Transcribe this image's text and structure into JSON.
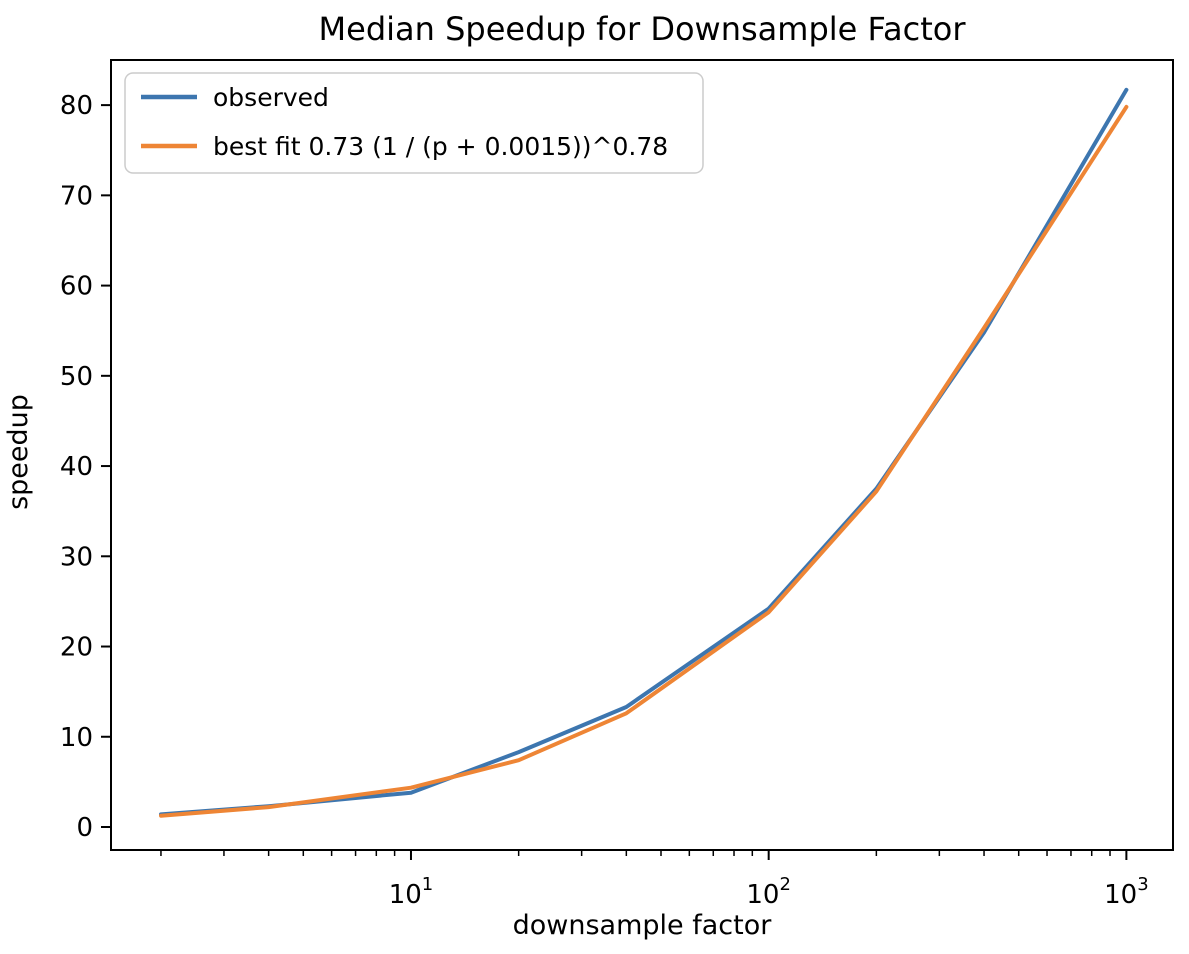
{
  "figure": {
    "background_color": "#ffffff",
    "axes_edge_color": "#000000",
    "text_color": "#000000"
  },
  "chart_data": {
    "type": "line",
    "title": "Median Speedup for Downsample Factor",
    "xlabel": "downsample factor",
    "ylabel": "speedup",
    "x_scale": "log",
    "y_scale": "linear",
    "grid": false,
    "legend_position": "upper left",
    "xlim": [
      1.45,
      1350
    ],
    "ylim": [
      -2.55,
      85.0
    ],
    "x": [
      2,
      4,
      10,
      20,
      40,
      100,
      200,
      400,
      1000
    ],
    "series": [
      {
        "name": "observed",
        "color": "#3d76af",
        "values": [
          1.4,
          2.3,
          3.8,
          8.3,
          13.3,
          24.2,
          37.5,
          54.8,
          81.7
        ]
      },
      {
        "name": "best fit 0.73 (1 / (p + 0.0015))^0.78",
        "color": "#ee8535",
        "values": [
          1.25,
          2.2,
          4.35,
          7.4,
          12.6,
          23.8,
          37.2,
          55.3,
          79.8
        ]
      }
    ],
    "yticks": [
      0,
      10,
      20,
      30,
      40,
      50,
      60,
      70,
      80
    ],
    "xticks": [
      {
        "value": 10,
        "base": "10",
        "exp": "1"
      },
      {
        "value": 100,
        "base": "10",
        "exp": "2"
      },
      {
        "value": 1000,
        "base": "10",
        "exp": "3"
      }
    ],
    "x_minor_ticks": [
      2,
      3,
      4,
      5,
      6,
      7,
      8,
      9,
      20,
      30,
      40,
      50,
      60,
      70,
      80,
      90,
      200,
      300,
      400,
      500,
      600,
      700,
      800,
      900
    ]
  }
}
